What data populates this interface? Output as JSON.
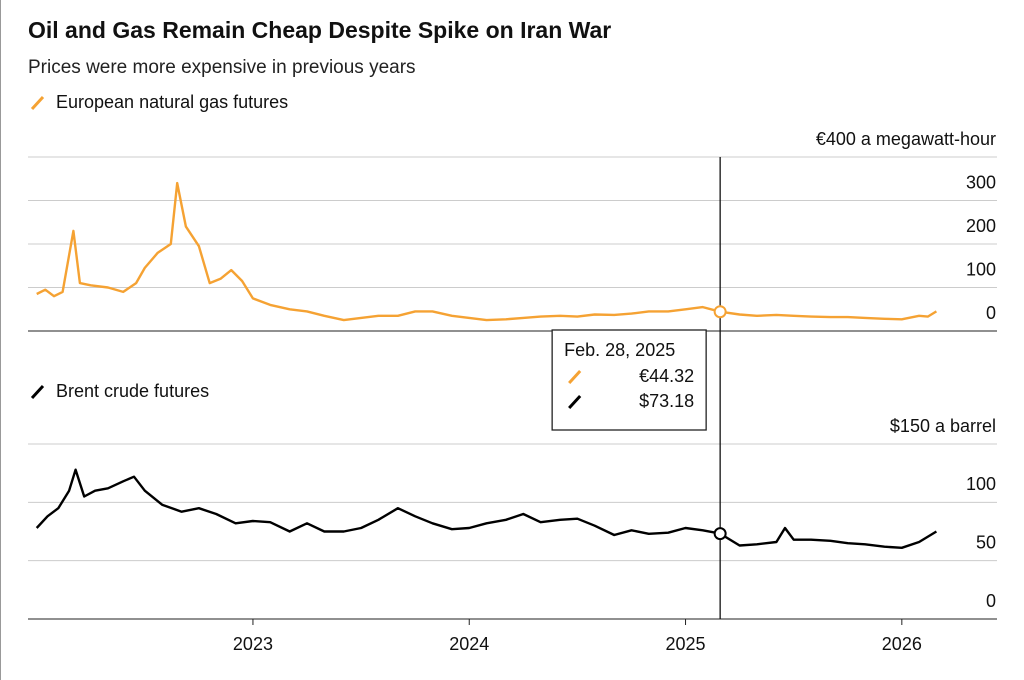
{
  "title": "Oil and Gas Remain Cheap Despite Spike on Iran War",
  "subtitle": "Prices were more expensive in previous years",
  "chart_data": [
    {
      "type": "line",
      "x": [
        2022.0,
        2022.04,
        2022.08,
        2022.12,
        2022.17,
        2022.2,
        2022.25,
        2022.33,
        2022.4,
        2022.46,
        2022.5,
        2022.56,
        2022.62,
        2022.65,
        2022.69,
        2022.75,
        2022.8,
        2022.85,
        2022.9,
        2022.95,
        2023.0,
        2023.08,
        2023.17,
        2023.25,
        2023.33,
        2023.42,
        2023.5,
        2023.58,
        2023.67,
        2023.75,
        2023.83,
        2023.92,
        2024.0,
        2024.08,
        2024.17,
        2024.25,
        2024.33,
        2024.42,
        2024.5,
        2024.58,
        2024.67,
        2024.75,
        2024.83,
        2024.92,
        2025.0,
        2025.08,
        2025.16,
        2025.25,
        2025.33,
        2025.42,
        2025.5,
        2025.58,
        2025.67,
        2025.75,
        2025.83,
        2025.92,
        2026.0,
        2026.08,
        2026.12,
        2026.16
      ],
      "series": [
        {
          "name": "European natural gas futures",
          "color": "#f5a233",
          "values": [
            85,
            95,
            80,
            90,
            230,
            110,
            105,
            100,
            90,
            110,
            145,
            180,
            200,
            340,
            240,
            195,
            110,
            120,
            140,
            115,
            75,
            60,
            50,
            45,
            35,
            25,
            30,
            35,
            35,
            45,
            45,
            35,
            30,
            25,
            27,
            30,
            33,
            35,
            33,
            38,
            37,
            40,
            45,
            45,
            50,
            55,
            44.32,
            38,
            35,
            37,
            35,
            33,
            32,
            32,
            30,
            28,
            27,
            35,
            33,
            45
          ]
        }
      ],
      "xlim": [
        2021.96,
        2026.44
      ],
      "ylim": [
        0,
        400
      ],
      "yticks": [
        0,
        100,
        200,
        300,
        {
          "value": 400,
          "label": "€400 a megawatt-hour"
        }
      ],
      "grid": true
    },
    {
      "type": "line",
      "x": [
        2022.0,
        2022.05,
        2022.1,
        2022.15,
        2022.18,
        2022.22,
        2022.27,
        2022.33,
        2022.4,
        2022.45,
        2022.5,
        2022.58,
        2022.67,
        2022.75,
        2022.83,
        2022.92,
        2023.0,
        2023.08,
        2023.17,
        2023.25,
        2023.33,
        2023.42,
        2023.5,
        2023.58,
        2023.67,
        2023.75,
        2023.83,
        2023.92,
        2024.0,
        2024.08,
        2024.17,
        2024.25,
        2024.33,
        2024.42,
        2024.5,
        2024.58,
        2024.67,
        2024.75,
        2024.83,
        2024.92,
        2025.0,
        2025.08,
        2025.16,
        2025.25,
        2025.33,
        2025.42,
        2025.46,
        2025.5,
        2025.58,
        2025.67,
        2025.75,
        2025.83,
        2025.92,
        2026.0,
        2026.08,
        2026.16
      ],
      "series": [
        {
          "name": "Brent crude futures",
          "color": "#000000",
          "values": [
            78,
            88,
            95,
            110,
            128,
            105,
            110,
            112,
            118,
            122,
            110,
            98,
            92,
            95,
            90,
            82,
            84,
            83,
            75,
            82,
            75,
            75,
            78,
            85,
            95,
            88,
            82,
            77,
            78,
            82,
            85,
            90,
            83,
            85,
            86,
            80,
            72,
            76,
            73,
            74,
            78,
            76,
            73.18,
            63,
            64,
            66,
            78,
            68,
            68,
            67,
            65,
            64,
            62,
            61,
            66,
            75
          ]
        }
      ],
      "xlim": [
        2021.96,
        2026.44
      ],
      "ylim": [
        0,
        150
      ],
      "yticks": [
        0,
        50,
        100,
        {
          "value": 150,
          "label": "$150 a barrel"
        }
      ],
      "xticks": [
        2023,
        2024,
        2025,
        2026
      ],
      "grid": true
    }
  ],
  "tooltip": {
    "x": 2025.16,
    "date": "Feb. 28, 2025",
    "labels": [
      "€44.32",
      "$73.18"
    ]
  }
}
